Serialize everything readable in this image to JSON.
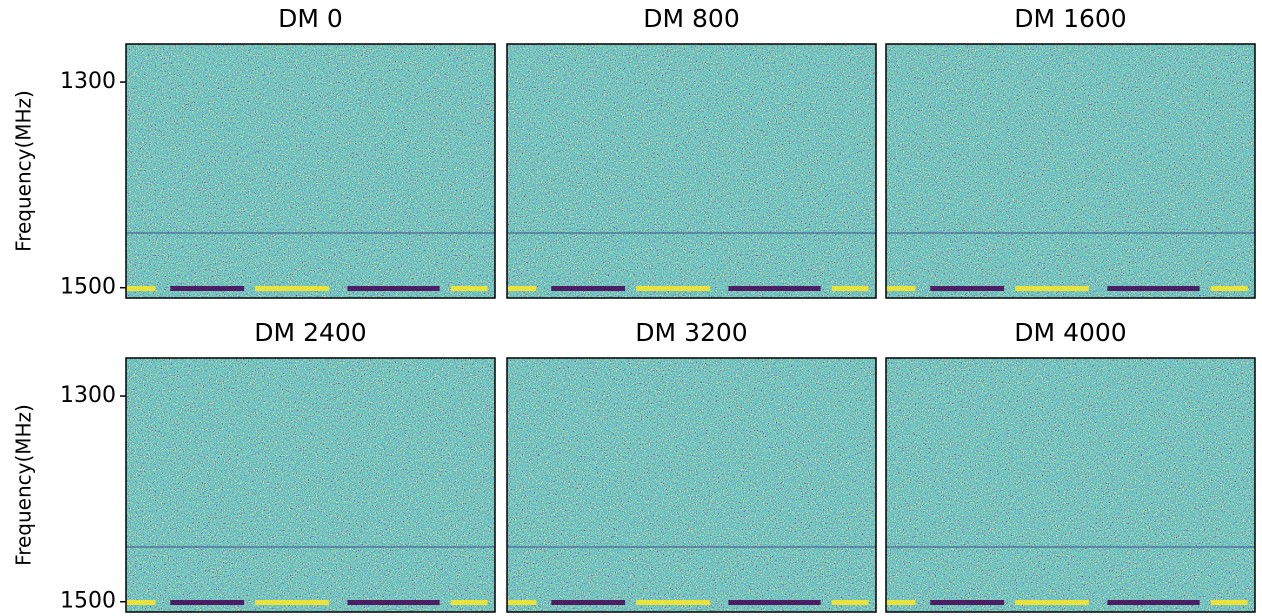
{
  "chart_data": [
    {
      "type": "heatmap",
      "title": "DM 0",
      "ylabel": "Frequency(MHz)",
      "ylim": [
        1510,
        1263
      ],
      "yticks": [
        1300,
        1500
      ]
    },
    {
      "type": "heatmap",
      "title": "DM 800",
      "ylim": [
        1510,
        1263
      ]
    },
    {
      "type": "heatmap",
      "title": "DM 1600",
      "ylim": [
        1510,
        1263
      ]
    },
    {
      "type": "heatmap",
      "title": "DM 2400",
      "ylabel": "Frequency(MHz)",
      "ylim": [
        1510,
        1263
      ],
      "yticks": [
        1300,
        1500
      ]
    },
    {
      "type": "heatmap",
      "title": "DM 3200",
      "ylim": [
        1510,
        1263
      ]
    },
    {
      "type": "heatmap",
      "title": "DM 4000",
      "ylim": [
        1510,
        1263
      ]
    }
  ]
}
